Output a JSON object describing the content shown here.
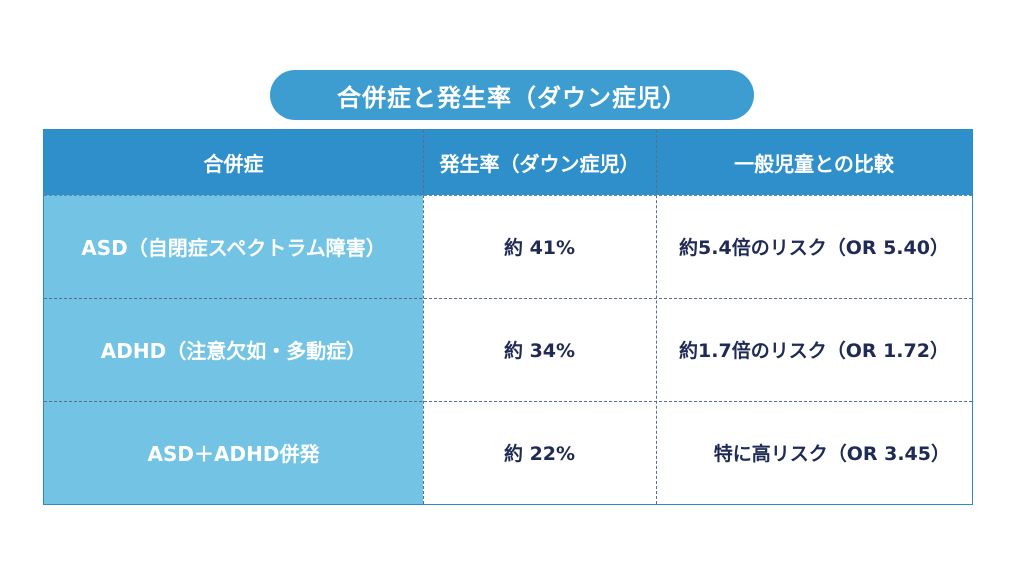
{
  "title": "合併症と発生率（ダウン症児）",
  "columns": {
    "complication": "合併症",
    "incidence": "発生率（ダウン症児）",
    "comparison": "一般児童との比較"
  },
  "rows": [
    {
      "complication": "ASD（自閉症スペクトラム障害）",
      "incidence": "約 41%",
      "comparison": "約5.4倍のリスク（OR 5.40）"
    },
    {
      "complication": "ADHD（注意欠如・多動症）",
      "incidence": "約 34%",
      "comparison": "約1.7倍のリスク（OR 1.72）"
    },
    {
      "complication": "ASD＋ADHD併発",
      "incidence": "約 22%",
      "comparison": "特に高リスク（OR 3.45）"
    }
  ],
  "colors": {
    "header_bg": "#2f8fcb",
    "title_bg": "#3d9dd0",
    "left_column_bg": "#73c4e4",
    "body_text": "#1f2a55"
  }
}
